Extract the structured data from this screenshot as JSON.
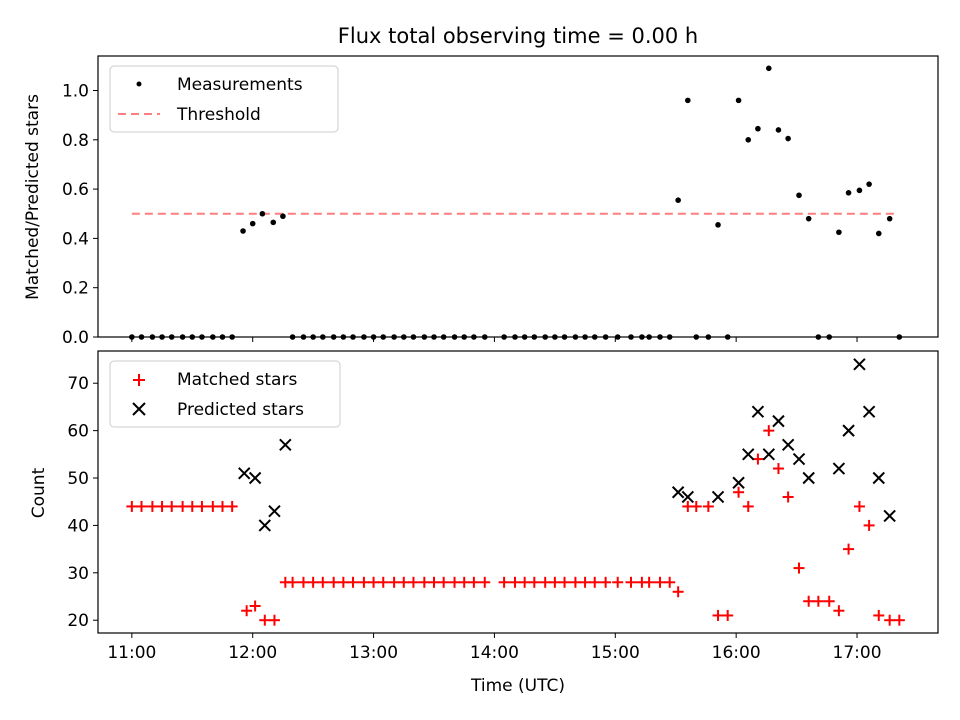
{
  "chart_data": {
    "title": "Flux total observing time = 0.00 h",
    "xlabel": "Time (UTC)",
    "x_ticks": [
      "11:00",
      "12:00",
      "13:00",
      "14:00",
      "15:00",
      "16:00",
      "17:00"
    ],
    "x_range_hours": [
      10.72,
      17.67
    ],
    "top": {
      "type": "scatter",
      "ylabel": "Matched/Predicted stars",
      "ylim": [
        0,
        1.14
      ],
      "y_ticks": [
        "0.0",
        "0.2",
        "0.4",
        "0.6",
        "0.8",
        "1.0"
      ],
      "legend": {
        "position": "top-left",
        "entries": [
          "Measurements",
          "Threshold"
        ]
      },
      "threshold": {
        "name": "Threshold",
        "value": 0.5,
        "x_start": 11.0,
        "x_end": 17.33,
        "color": "#ff7f7f"
      },
      "measurements": {
        "name": "Measurements",
        "color": "#000000",
        "x": [
          11.0,
          11.08,
          11.17,
          11.25,
          11.33,
          11.42,
          11.5,
          11.58,
          11.67,
          11.75,
          11.83,
          11.92,
          12.0,
          12.08,
          12.17,
          12.25,
          12.33,
          12.42,
          12.5,
          12.58,
          12.67,
          12.75,
          12.83,
          12.92,
          13.0,
          13.08,
          13.17,
          13.25,
          13.33,
          13.42,
          13.5,
          13.58,
          13.67,
          13.75,
          13.83,
          13.92,
          14.08,
          14.17,
          14.25,
          14.33,
          14.42,
          14.5,
          14.58,
          14.67,
          14.75,
          14.83,
          14.92,
          15.02,
          15.13,
          15.22,
          15.28,
          15.37,
          15.45,
          15.52,
          15.6,
          15.67,
          15.77,
          15.85,
          15.93,
          16.02,
          16.1,
          16.18,
          16.27,
          16.35,
          16.43,
          16.52,
          16.6,
          16.68,
          16.77,
          16.85,
          16.93,
          17.02,
          17.1,
          17.18,
          17.27,
          17.35
        ],
        "y": [
          0,
          0,
          0,
          0,
          0,
          0,
          0,
          0,
          0,
          0,
          0,
          0.43,
          0.46,
          0.5,
          0.465,
          0.49,
          0,
          0,
          0,
          0,
          0,
          0,
          0,
          0,
          0,
          0,
          0,
          0,
          0,
          0,
          0,
          0,
          0,
          0,
          0,
          0,
          0,
          0,
          0,
          0,
          0,
          0,
          0,
          0,
          0,
          0,
          0,
          0,
          0,
          0,
          0,
          0,
          0,
          0.555,
          0.96,
          0,
          0,
          0.455,
          0,
          0.96,
          0.8,
          0.845,
          1.09,
          0.84,
          0.805,
          0.575,
          0.48,
          0,
          0,
          0.425,
          0.585,
          0.595,
          0.62,
          0.42,
          0.48,
          0
        ]
      }
    },
    "bottom": {
      "type": "scatter",
      "ylabel": "Count",
      "ylim": [
        17.3,
        76.8
      ],
      "y_ticks": [
        "20",
        "30",
        "40",
        "50",
        "60",
        "70"
      ],
      "legend": {
        "position": "top-left",
        "entries": [
          "Matched stars",
          "Predicted stars"
        ]
      },
      "matched": {
        "name": "Matched stars",
        "color": "#ff0000",
        "x": [
          11.0,
          11.08,
          11.17,
          11.25,
          11.33,
          11.42,
          11.5,
          11.58,
          11.67,
          11.75,
          11.83,
          11.95,
          12.02,
          12.1,
          12.18,
          12.27,
          12.33,
          12.42,
          12.5,
          12.58,
          12.67,
          12.75,
          12.83,
          12.92,
          13.0,
          13.08,
          13.17,
          13.25,
          13.33,
          13.42,
          13.5,
          13.58,
          13.67,
          13.75,
          13.83,
          13.92,
          14.08,
          14.17,
          14.25,
          14.33,
          14.42,
          14.5,
          14.58,
          14.67,
          14.75,
          14.83,
          14.92,
          15.02,
          15.13,
          15.22,
          15.28,
          15.37,
          15.45,
          15.52,
          15.6,
          15.67,
          15.77,
          15.85,
          15.93,
          16.02,
          16.1,
          16.18,
          16.27,
          16.35,
          16.43,
          16.52,
          16.6,
          16.68,
          16.77,
          16.85,
          16.93,
          17.02,
          17.1,
          17.18,
          17.27,
          17.35
        ],
        "y": [
          44,
          44,
          44,
          44,
          44,
          44,
          44,
          44,
          44,
          44,
          44,
          22,
          23,
          20,
          20,
          28,
          28,
          28,
          28,
          28,
          28,
          28,
          28,
          28,
          28,
          28,
          28,
          28,
          28,
          28,
          28,
          28,
          28,
          28,
          28,
          28,
          28,
          28,
          28,
          28,
          28,
          28,
          28,
          28,
          28,
          28,
          28,
          28,
          28,
          28,
          28,
          28,
          28,
          26,
          44,
          44,
          44,
          21,
          21,
          47,
          44,
          54,
          60,
          52,
          46,
          31,
          24,
          24,
          24,
          22,
          35,
          44,
          40,
          21,
          20,
          20
        ]
      },
      "predicted": {
        "name": "Predicted stars",
        "color": "#000000",
        "x": [
          11.93,
          12.02,
          12.1,
          12.18,
          12.27,
          15.52,
          15.6,
          15.85,
          16.02,
          16.1,
          16.18,
          16.27,
          16.35,
          16.43,
          16.52,
          16.6,
          16.85,
          16.93,
          17.02,
          17.1,
          17.18,
          17.27
        ],
        "y": [
          51,
          50,
          40,
          43,
          57,
          47,
          46,
          46,
          49,
          55,
          64,
          55,
          62,
          57,
          54,
          50,
          52,
          60,
          74,
          64,
          50,
          42
        ]
      }
    }
  }
}
